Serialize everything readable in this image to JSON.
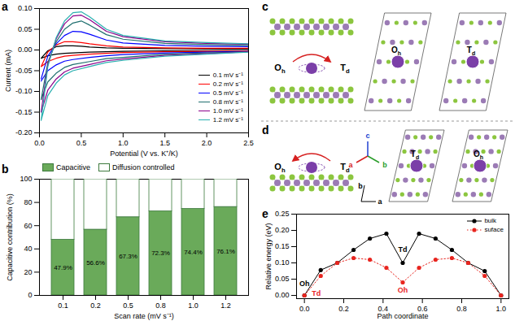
{
  "chart_data": [
    {
      "type": "line",
      "title": "a",
      "x_label": "Potential (V vs. K⁺/K)",
      "y_label": "Current (mA)",
      "xlim": [
        0,
        2.5
      ],
      "xticks": [
        {
          "value": 0,
          "label": "0.0"
        },
        0.5,
        {
          "value": 1,
          "label": "1.0"
        },
        1.5,
        {
          "value": 2,
          "label": "2.0"
        },
        2.5
      ],
      "ylim": [
        -0.2,
        0.1
      ],
      "yticks": [
        {
          "value": -0.2,
          "label": "-0.20"
        },
        -0.15,
        {
          "value": -0.1,
          "label": "-0.10"
        },
        -0.05,
        {
          "value": 0,
          "label": "0.00"
        },
        0.05,
        {
          "value": 0.1,
          "label": "0.10"
        }
      ],
      "legend": "bottom-right",
      "series": [
        {
          "name": "0.1 mV s⁻¹",
          "color": "#000000",
          "x": [
            0.02,
            0.1,
            0.2,
            0.3,
            0.4,
            0.5,
            0.6,
            0.8,
            1.0,
            1.5,
            2.0,
            2.5,
            2.5,
            2.0,
            1.5,
            1.0,
            0.8,
            0.6,
            0.4,
            0.3,
            0.2,
            0.1,
            0.02
          ],
          "values": [
            -0.02,
            -0.002,
            0.008,
            0.01,
            0.01,
            0.009,
            0.007,
            0.005,
            0.004,
            0.003,
            0.002,
            0.002,
            -0.001,
            -0.002,
            -0.002,
            -0.003,
            -0.004,
            -0.005,
            -0.007,
            -0.008,
            -0.01,
            -0.014,
            -0.02
          ]
        },
        {
          "name": "0.2 mV s⁻¹",
          "color": "#ff0000",
          "x": [
            0.02,
            0.1,
            0.2,
            0.3,
            0.4,
            0.5,
            0.6,
            0.8,
            1.0,
            1.5,
            2.0,
            2.5,
            2.5,
            2.0,
            1.5,
            1.0,
            0.8,
            0.6,
            0.4,
            0.3,
            0.2,
            0.1,
            0.02
          ],
          "values": [
            -0.04,
            -0.005,
            0.012,
            0.02,
            0.02,
            0.018,
            0.015,
            0.01,
            0.007,
            0.005,
            0.004,
            0.004,
            -0.002,
            -0.003,
            -0.004,
            -0.006,
            -0.008,
            -0.01,
            -0.013,
            -0.015,
            -0.02,
            -0.028,
            -0.04
          ]
        },
        {
          "name": "0.5 mV s⁻¹",
          "color": "#0000ff",
          "x": [
            0.02,
            0.1,
            0.2,
            0.3,
            0.4,
            0.5,
            0.6,
            0.8,
            1.0,
            1.5,
            2.0,
            2.5,
            2.5,
            2.0,
            1.5,
            1.0,
            0.8,
            0.6,
            0.4,
            0.3,
            0.2,
            0.1,
            0.02
          ],
          "values": [
            -0.07,
            -0.015,
            0.015,
            0.035,
            0.045,
            0.044,
            0.038,
            0.024,
            0.017,
            0.011,
            0.009,
            0.008,
            -0.003,
            -0.005,
            -0.007,
            -0.011,
            -0.014,
            -0.018,
            -0.023,
            -0.027,
            -0.036,
            -0.05,
            -0.075
          ]
        },
        {
          "name": "0.8 mV s⁻¹",
          "color": "#1f6f6f",
          "x": [
            0.02,
            0.1,
            0.2,
            0.3,
            0.4,
            0.5,
            0.6,
            0.8,
            1.0,
            1.5,
            2.0,
            2.5,
            2.5,
            2.0,
            1.5,
            1.0,
            0.8,
            0.6,
            0.4,
            0.3,
            0.2,
            0.1,
            0.02
          ],
          "values": [
            -0.12,
            -0.03,
            0.02,
            0.05,
            0.065,
            0.07,
            0.06,
            0.037,
            0.026,
            0.016,
            0.013,
            0.011,
            -0.004,
            -0.007,
            -0.01,
            -0.018,
            -0.021,
            -0.028,
            -0.035,
            -0.042,
            -0.056,
            -0.077,
            -0.12
          ]
        },
        {
          "name": "1.0 mV s⁻¹",
          "color": "#8b008b",
          "x": [
            0.02,
            0.1,
            0.2,
            0.3,
            0.4,
            0.5,
            0.6,
            0.8,
            1.0,
            1.5,
            2.0,
            2.5,
            2.5,
            2.0,
            1.5,
            1.0,
            0.8,
            0.6,
            0.4,
            0.3,
            0.2,
            0.1,
            0.02
          ],
          "values": [
            -0.15,
            -0.035,
            0.027,
            0.063,
            0.082,
            0.084,
            0.073,
            0.045,
            0.032,
            0.02,
            0.016,
            0.014,
            -0.004,
            -0.009,
            -0.013,
            -0.022,
            -0.026,
            -0.035,
            -0.044,
            -0.053,
            -0.07,
            -0.097,
            -0.15
          ]
        },
        {
          "name": "1.2 mV s⁻¹",
          "color": "#2ab0b0",
          "x": [
            0.02,
            0.1,
            0.2,
            0.3,
            0.4,
            0.5,
            0.6,
            0.8,
            1.0,
            1.5,
            2.0,
            2.5,
            2.5,
            2.0,
            1.5,
            1.0,
            0.8,
            0.6,
            0.4,
            0.3,
            0.2,
            0.1,
            0.02
          ],
          "values": [
            -0.17,
            -0.04,
            0.03,
            0.07,
            0.09,
            0.092,
            0.08,
            0.05,
            0.035,
            0.022,
            0.018,
            0.015,
            -0.005,
            -0.01,
            -0.015,
            -0.025,
            -0.03,
            -0.04,
            -0.05,
            -0.06,
            -0.08,
            -0.11,
            -0.17
          ]
        }
      ]
    },
    {
      "type": "bar",
      "title": "b",
      "x_label": "Scan rate (mV s⁻¹)",
      "y_label": "Capacitive contribution (%)",
      "categories": [
        "0.1",
        "0.2",
        "0.5",
        "0.8",
        "1.0",
        "1.2"
      ],
      "ylim": [
        0,
        100
      ],
      "yticks": [
        0,
        20,
        40,
        60,
        80,
        100
      ],
      "stacked": true,
      "legend": "top",
      "data_labels": true,
      "series": [
        {
          "name": "Capacitive",
          "color": "#6aaa5a",
          "values": [
            47.9,
            56.6,
            67.3,
            72.3,
            74.4,
            76.1
          ],
          "value_labels": [
            "47.9%",
            "56.6%",
            "67.3%",
            "72.3%",
            "74.4%",
            "76.1%"
          ]
        },
        {
          "name": "Diffusion controlled",
          "color": "#ffffff",
          "values": [
            52.1,
            43.4,
            32.7,
            27.7,
            25.6,
            23.9
          ]
        }
      ]
    },
    {
      "type": "line",
      "title": "e",
      "x_label": "Path coordinate",
      "y_label": "Relative energy (eV)",
      "xlim": [
        -0.04,
        1.04
      ],
      "xticks": [
        {
          "value": 0,
          "label": "0.0"
        },
        0.2,
        0.4,
        0.6,
        0.8,
        {
          "value": 1,
          "label": "1.0"
        }
      ],
      "ylim": [
        -0.01,
        0.25
      ],
      "yticks": [
        {
          "value": 0,
          "label": "0.00"
        },
        0.05,
        {
          "value": 0.1,
          "label": "0.10"
        },
        0.15,
        {
          "value": 0.2,
          "label": "0.20"
        },
        0.25
      ],
      "legend": "top-right",
      "series": [
        {
          "name": "bulk",
          "color": "#000000",
          "marker": "circle",
          "line_style": "solid",
          "x": [
            0,
            0.083,
            0.167,
            0.25,
            0.333,
            0.417,
            0.5,
            0.583,
            0.667,
            0.75,
            0.833,
            0.917,
            1
          ],
          "values": [
            0,
            0.078,
            0.1,
            0.14,
            0.175,
            0.19,
            0.1,
            0.19,
            0.175,
            0.14,
            0.1,
            0.075,
            0
          ]
        },
        {
          "name": "suface",
          "color": "#e8251f",
          "marker": "circle",
          "line_style": "dotted",
          "x": [
            0,
            0.083,
            0.167,
            0.25,
            0.333,
            0.417,
            0.5,
            0.583,
            0.667,
            0.75,
            0.833,
            0.917,
            1
          ],
          "values": [
            0,
            0.06,
            0.1,
            0.115,
            0.11,
            0.085,
            0.04,
            0.085,
            0.11,
            0.115,
            0.1,
            0.06,
            0
          ]
        }
      ],
      "annotations": [
        {
          "text": "Oh",
          "x": 0,
          "y": 0.035,
          "color": "#000000"
        },
        {
          "text": "Td",
          "x": 0.06,
          "y": 0.005,
          "color": "#e8251f"
        },
        {
          "text": "Td",
          "x": 0.5,
          "y": 0.14,
          "color": "#000000"
        },
        {
          "text": "Oh",
          "x": 0.5,
          "y": 0.015,
          "color": "#e8251f"
        }
      ]
    }
  ],
  "diagrams": [
    {
      "title": "c",
      "side_view": {
        "sites": [
          "Oh",
          "Td"
        ],
        "from": "Oh",
        "to": "Td"
      },
      "top_views": [
        "Oh",
        "Td"
      ]
    },
    {
      "title": "d",
      "side_view": {
        "sites": [
          "Oh",
          "Td"
        ],
        "from": "Td",
        "to": "Oh"
      },
      "axes": [
        "a",
        "b",
        "c"
      ],
      "top_view_axes": [
        "b",
        "a"
      ],
      "top_views": [
        "Td",
        "Oh"
      ]
    }
  ]
}
